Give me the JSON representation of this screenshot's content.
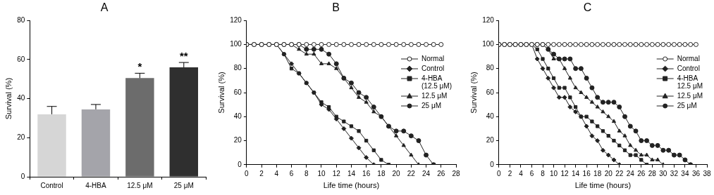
{
  "chart_data": [
    {
      "type": "bar",
      "title": "A",
      "categories": [
        "Control",
        "4-HBA",
        "12.5 μM",
        "25 μM"
      ],
      "values": [
        32,
        34.5,
        50.5,
        56
      ],
      "errors": [
        4,
        2.5,
        2.5,
        2.5
      ],
      "colors": [
        "#d6d6d6",
        "#a4a4aa",
        "#6c6c6c",
        "#2f2f2f"
      ],
      "ylim": [
        0,
        80
      ],
      "yticks": [
        0,
        20,
        40,
        60,
        80
      ],
      "y_label": "Survival (%)",
      "grid": false,
      "annotations": [
        {
          "category": "12.5 μM",
          "text": "*"
        },
        {
          "category": "25 μM",
          "text": "**"
        }
      ]
    },
    {
      "type": "line",
      "title": "B",
      "x": [
        0,
        1,
        2,
        3,
        4,
        5,
        6,
        7,
        8,
        9,
        10,
        11,
        12,
        13,
        14,
        15,
        16,
        17,
        18,
        19,
        20,
        21,
        22,
        23,
        24,
        25,
        26
      ],
      "xlim": [
        0,
        28
      ],
      "xticks": [
        0,
        2,
        4,
        6,
        8,
        10,
        12,
        14,
        16,
        18,
        20,
        22,
        24,
        26,
        28
      ],
      "ylim": [
        0,
        120
      ],
      "yticks": [
        0,
        20,
        40,
        60,
        80,
        100,
        120
      ],
      "x_label": "Life time (hours)",
      "y_label": "Survival (%)",
      "legend": "upper right",
      "grid": false,
      "series": [
        {
          "name": "Normal",
          "color": "#222222",
          "marker": "open_circle",
          "values": [
            100,
            100,
            100,
            100,
            100,
            100,
            100,
            100,
            100,
            100,
            100,
            100,
            100,
            100,
            100,
            100,
            100,
            100,
            100,
            100,
            100,
            100,
            100,
            100,
            100,
            100,
            100
          ]
        },
        {
          "name": "Control",
          "color": "#222222",
          "marker": "diamond",
          "values": [
            100,
            100,
            100,
            100,
            100,
            92,
            84,
            76,
            68,
            60,
            50,
            46,
            38,
            30,
            22,
            14,
            6,
            0,
            null,
            null,
            null,
            null,
            null,
            null,
            null,
            null,
            null
          ]
        },
        {
          "name": "4-HBA\n(12.5 μM)",
          "color": "#222222",
          "marker": "square",
          "values": [
            100,
            100,
            100,
            100,
            100,
            92,
            80,
            76,
            68,
            60,
            52,
            48,
            40,
            36,
            32,
            28,
            20,
            12,
            4,
            0,
            null,
            null,
            null,
            null,
            null,
            null,
            null
          ]
        },
        {
          "name": "12.5 μM",
          "color": "#222222",
          "marker": "triangle",
          "values": [
            100,
            100,
            100,
            100,
            100,
            100,
            100,
            96,
            92,
            92,
            84,
            84,
            80,
            72,
            64,
            56,
            52,
            44,
            40,
            32,
            24,
            16,
            8,
            0,
            null,
            null,
            null
          ]
        },
        {
          "name": "25 μM",
          "color": "#222222",
          "marker": "circle",
          "values": [
            100,
            100,
            100,
            100,
            100,
            100,
            100,
            100,
            96,
            96,
            96,
            92,
            84,
            72,
            68,
            60,
            56,
            48,
            40,
            32,
            28,
            28,
            24,
            20,
            8,
            0,
            null
          ]
        }
      ]
    },
    {
      "type": "line",
      "title": "C",
      "x": [
        0,
        1,
        2,
        3,
        4,
        5,
        6,
        7,
        8,
        9,
        10,
        11,
        12,
        13,
        14,
        15,
        16,
        17,
        18,
        19,
        20,
        21,
        22,
        23,
        24,
        25,
        26,
        27,
        28,
        29,
        30,
        31,
        32,
        33,
        34,
        35,
        36
      ],
      "xlim": [
        0,
        38
      ],
      "xticks": [
        0,
        2,
        4,
        6,
        8,
        10,
        12,
        14,
        16,
        18,
        20,
        22,
        24,
        26,
        28,
        30,
        32,
        34,
        36,
        38
      ],
      "ylim": [
        0,
        120
      ],
      "yticks": [
        0,
        20,
        40,
        60,
        80,
        100,
        120
      ],
      "x_label": "Life time (hours)",
      "y_label": "Survival (%)",
      "legend": "upper right",
      "grid": false,
      "series": [
        {
          "name": "Normal",
          "color": "#222222",
          "marker": "open_circle",
          "values": [
            100,
            100,
            100,
            100,
            100,
            100,
            100,
            100,
            100,
            100,
            100,
            100,
            100,
            100,
            100,
            100,
            100,
            100,
            100,
            100,
            100,
            100,
            100,
            100,
            100,
            100,
            100,
            100,
            100,
            100,
            100,
            100,
            100,
            100,
            100,
            100,
            100
          ]
        },
        {
          "name": "Control",
          "color": "#222222",
          "marker": "diamond",
          "values": [
            100,
            100,
            100,
            100,
            100,
            100,
            100,
            88,
            80,
            72,
            64,
            56,
            56,
            48,
            44,
            40,
            32,
            24,
            20,
            12,
            8,
            4,
            0,
            null,
            null,
            null,
            null,
            null,
            null,
            null,
            null,
            null,
            null,
            null,
            null,
            null,
            null
          ]
        },
        {
          "name": "4-HBA\n12.5 μM",
          "color": "#222222",
          "marker": "square",
          "values": [
            100,
            100,
            100,
            100,
            100,
            100,
            100,
            96,
            88,
            80,
            72,
            64,
            64,
            56,
            48,
            40,
            40,
            36,
            32,
            28,
            24,
            20,
            16,
            12,
            8,
            8,
            4,
            0,
            null,
            null,
            null,
            null,
            null,
            null,
            null,
            null,
            null
          ]
        },
        {
          "name": "12.5 μM",
          "color": "#222222",
          "marker": "triangle",
          "values": [
            100,
            100,
            100,
            100,
            100,
            100,
            100,
            100,
            100,
            96,
            88,
            88,
            80,
            72,
            64,
            60,
            56,
            52,
            48,
            44,
            40,
            36,
            28,
            24,
            16,
            12,
            8,
            8,
            4,
            4,
            0,
            null,
            null,
            null,
            null,
            null,
            null
          ]
        },
        {
          "name": "25 μM",
          "color": "#222222",
          "marker": "circle",
          "values": [
            100,
            100,
            100,
            100,
            100,
            100,
            100,
            100,
            100,
            96,
            92,
            88,
            88,
            88,
            80,
            80,
            72,
            64,
            56,
            52,
            52,
            52,
            48,
            40,
            32,
            28,
            20,
            20,
            16,
            16,
            12,
            12,
            8,
            8,
            4,
            0,
            null
          ]
        }
      ]
    }
  ]
}
